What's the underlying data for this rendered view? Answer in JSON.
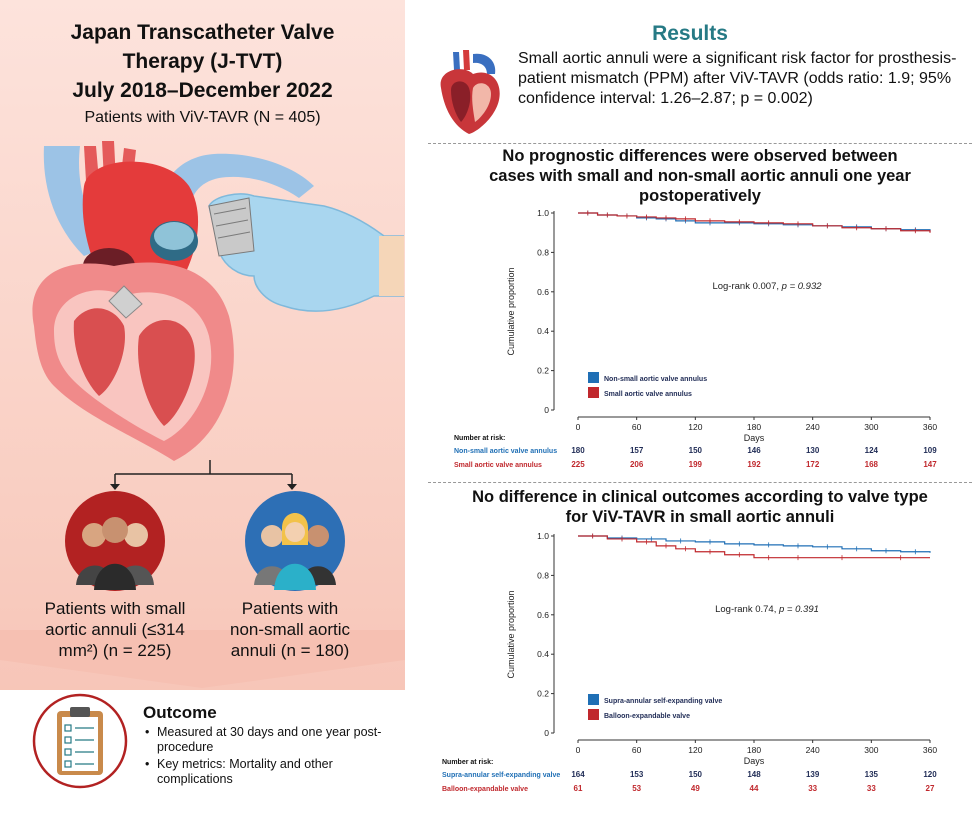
{
  "left": {
    "title_lines": [
      "Japan Transcatheter Valve",
      "Therapy (J-TVT)",
      "July 2018–December 2022"
    ],
    "subtitle": "Patients with ViV-TAVR (N = 405)",
    "group_small": [
      "Patients with small",
      "aortic annuli (≤314",
      "mm²) (n = 225)"
    ],
    "group_nonsmall": [
      "Patients with",
      "non-small aortic",
      "annuli (n = 180)"
    ],
    "outcome_title": "Outcome",
    "outcome_items": [
      "Measured at 30 days and one year post-procedure",
      "Key metrics: Mortality and other complications"
    ]
  },
  "results": {
    "title": "Results",
    "text": "Small aortic annuli were a significant risk factor for prosthesis-patient mismatch (PPM) after ViV-TAVR (odds ratio: 1.9; 95% confidence interval: 1.26–2.87; p = 0.002)"
  },
  "section1_title": [
    "No prognostic differences were observed between",
    "cases with small and non-small aortic annuli one year",
    "postoperatively"
  ],
  "section2_title": [
    "No difference in clinical outcomes according to valve type",
    "for ViV-TAVR in small aortic annuli"
  ],
  "colors": {
    "blue": "#1f6fb5",
    "red": "#c0282d",
    "teal": "#267a85"
  },
  "chart_data": [
    {
      "type": "line",
      "xlabel": "Days",
      "ylabel": "Cumulative proportion",
      "x_ticks": [
        0,
        60,
        120,
        180,
        240,
        300,
        360
      ],
      "y_ticks": [
        "0",
        "0.2",
        "0.4",
        "0.6",
        "0.8",
        "1.0"
      ],
      "ylim": [
        0,
        1.0
      ],
      "xlim": [
        0,
        360
      ],
      "annotation_prefix": "Log-rank 0.007, ",
      "annotation_p": "p = 0.932",
      "number_at_risk_label": "Number at risk:",
      "series": [
        {
          "name": "Non-small aortic valve annulus",
          "color": "#1f6fb5",
          "x": [
            0,
            20,
            40,
            60,
            80,
            100,
            120,
            150,
            180,
            210,
            240,
            270,
            300,
            330,
            360
          ],
          "y": [
            1.0,
            0.99,
            0.985,
            0.975,
            0.97,
            0.96,
            0.95,
            0.95,
            0.945,
            0.94,
            0.935,
            0.93,
            0.92,
            0.915,
            0.905
          ],
          "at_risk": [
            180,
            157,
            150,
            146,
            130,
            124,
            109
          ]
        },
        {
          "name": "Small aortic valve annulus",
          "color": "#c0282d",
          "x": [
            0,
            20,
            40,
            60,
            80,
            100,
            120,
            150,
            180,
            210,
            240,
            270,
            300,
            330,
            360
          ],
          "y": [
            1.0,
            0.99,
            0.985,
            0.98,
            0.975,
            0.97,
            0.96,
            0.955,
            0.95,
            0.945,
            0.935,
            0.925,
            0.92,
            0.91,
            0.9
          ],
          "at_risk": [
            225,
            206,
            199,
            192,
            172,
            168,
            147
          ]
        }
      ]
    },
    {
      "type": "line",
      "xlabel": "Days",
      "ylabel": "Cumulative proportion",
      "x_ticks": [
        0,
        60,
        120,
        180,
        240,
        300,
        360
      ],
      "y_ticks": [
        "0",
        "0.2",
        "0.4",
        "0.6",
        "0.8",
        "1.0"
      ],
      "ylim": [
        0,
        1.0
      ],
      "xlim": [
        0,
        360
      ],
      "annotation_prefix": "Log-rank 0.74, ",
      "annotation_p": "p = 0.391",
      "number_at_risk_label": "Number at risk:",
      "series": [
        {
          "name": "Supra-annular self-expanding valve",
          "color": "#1f6fb5",
          "x": [
            0,
            30,
            60,
            90,
            120,
            150,
            180,
            210,
            240,
            270,
            300,
            330,
            360
          ],
          "y": [
            1.0,
            0.99,
            0.985,
            0.975,
            0.97,
            0.96,
            0.955,
            0.95,
            0.945,
            0.935,
            0.925,
            0.92,
            0.915
          ],
          "at_risk": [
            164,
            153,
            150,
            148,
            139,
            135,
            120
          ]
        },
        {
          "name": "Balloon-expandable valve",
          "color": "#c0282d",
          "x": [
            0,
            30,
            60,
            80,
            100,
            120,
            150,
            180,
            210,
            240,
            300,
            360
          ],
          "y": [
            1.0,
            0.985,
            0.97,
            0.95,
            0.935,
            0.92,
            0.905,
            0.89,
            0.89,
            0.89,
            0.89,
            0.89
          ],
          "at_risk": [
            61,
            53,
            49,
            44,
            33,
            33,
            27
          ]
        }
      ]
    }
  ]
}
